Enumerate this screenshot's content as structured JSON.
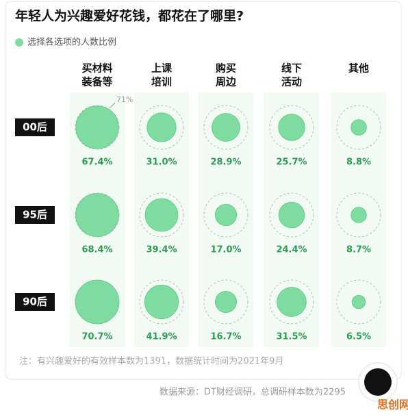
{
  "chart_data": {
    "type": "bubble-grid",
    "title": "年轻人为兴趣爱好花钱，都花在了哪里?",
    "legend": "选择各选项的人数比例",
    "color": "#7fdca0",
    "categories": [
      [
        "买材料",
        "装备等"
      ],
      [
        "上课",
        "培训"
      ],
      [
        "购买",
        "周边"
      ],
      [
        "线下",
        "活动"
      ],
      [
        "其他"
      ]
    ],
    "series": [
      {
        "name": "00后",
        "values": [
          67.4,
          31.0,
          28.9,
          25.7,
          8.8
        ],
        "value_labels": [
          "67.4%",
          "31.0%",
          "28.9%",
          "25.7%",
          "8.8%"
        ]
      },
      {
        "name": "95后",
        "values": [
          68.4,
          39.4,
          17.0,
          24.4,
          8.7
        ],
        "value_labels": [
          "68.4%",
          "39.4%",
          "17.0%",
          "24.4%",
          "8.7%"
        ]
      },
      {
        "name": "90后",
        "values": [
          70.7,
          41.9,
          16.7,
          31.5,
          6.5
        ],
        "value_labels": [
          "70.7%",
          "41.9%",
          "16.7%",
          "31.5%",
          "6.5%"
        ]
      }
    ],
    "reference": {
      "value": 71,
      "label": "71%"
    },
    "note": "注：有兴趣爱好的有效样本数为1391，数据统计时间为2021年9月",
    "source": "数据来源：DT财经调研，总调研样本数为2295",
    "watermark": "思创网"
  }
}
